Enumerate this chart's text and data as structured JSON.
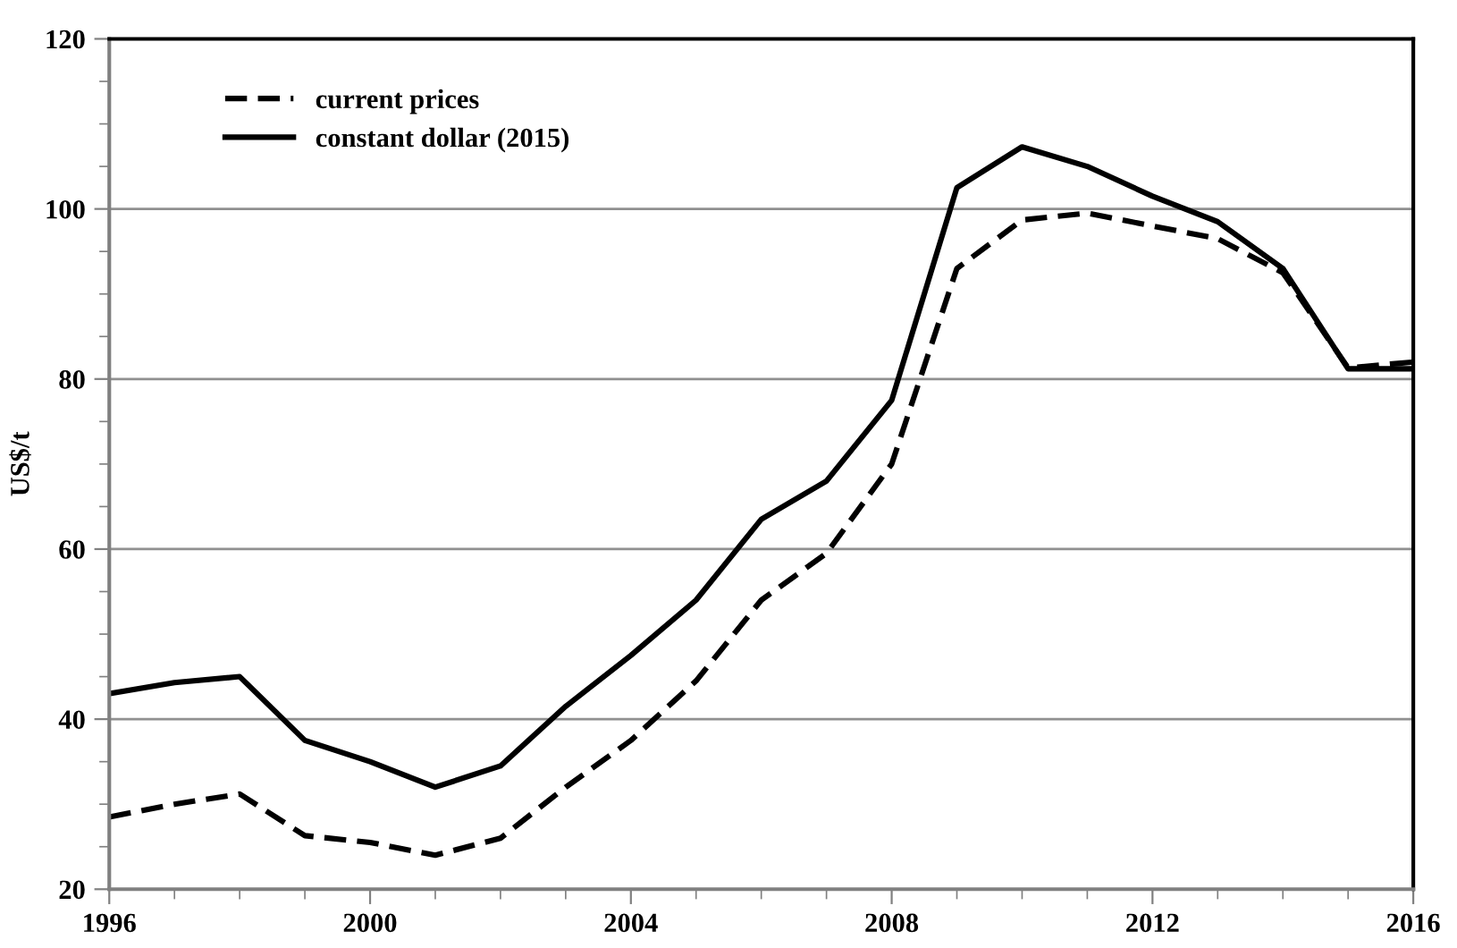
{
  "chart_data": {
    "type": "line",
    "ylabel": "US$/t",
    "x": [
      1996,
      1997,
      1998,
      1999,
      2000,
      2001,
      2002,
      2003,
      2004,
      2005,
      2006,
      2007,
      2008,
      2009,
      2010,
      2011,
      2012,
      2013,
      2014,
      2015,
      2016
    ],
    "series": [
      {
        "name": "current prices",
        "color": "#000000",
        "line_style": "dashed",
        "values": [
          28.5,
          30,
          31.2,
          26.3,
          25.5,
          24,
          26,
          32,
          37.5,
          44.5,
          54,
          59.5,
          70,
          93,
          98.7,
          99.5,
          98,
          96.5,
          92.5,
          81.3,
          82
        ]
      },
      {
        "name": "constant dollar (2015)",
        "color": "#000000",
        "line_style": "solid",
        "values": [
          43,
          44.3,
          45,
          37.5,
          35,
          32,
          34.5,
          41.5,
          47.5,
          54,
          63.5,
          68,
          77.5,
          102.5,
          107.3,
          105,
          101.5,
          98.5,
          93,
          81.2,
          81.2
        ]
      }
    ],
    "xlim": [
      1996,
      2016
    ],
    "xticks": [
      1996,
      2000,
      2004,
      2008,
      2012,
      2016
    ],
    "ylim": [
      20,
      120
    ],
    "yticks": [
      20,
      40,
      60,
      80,
      100,
      120
    ],
    "grid": "y",
    "legend": "top left",
    "marker": "none"
  }
}
